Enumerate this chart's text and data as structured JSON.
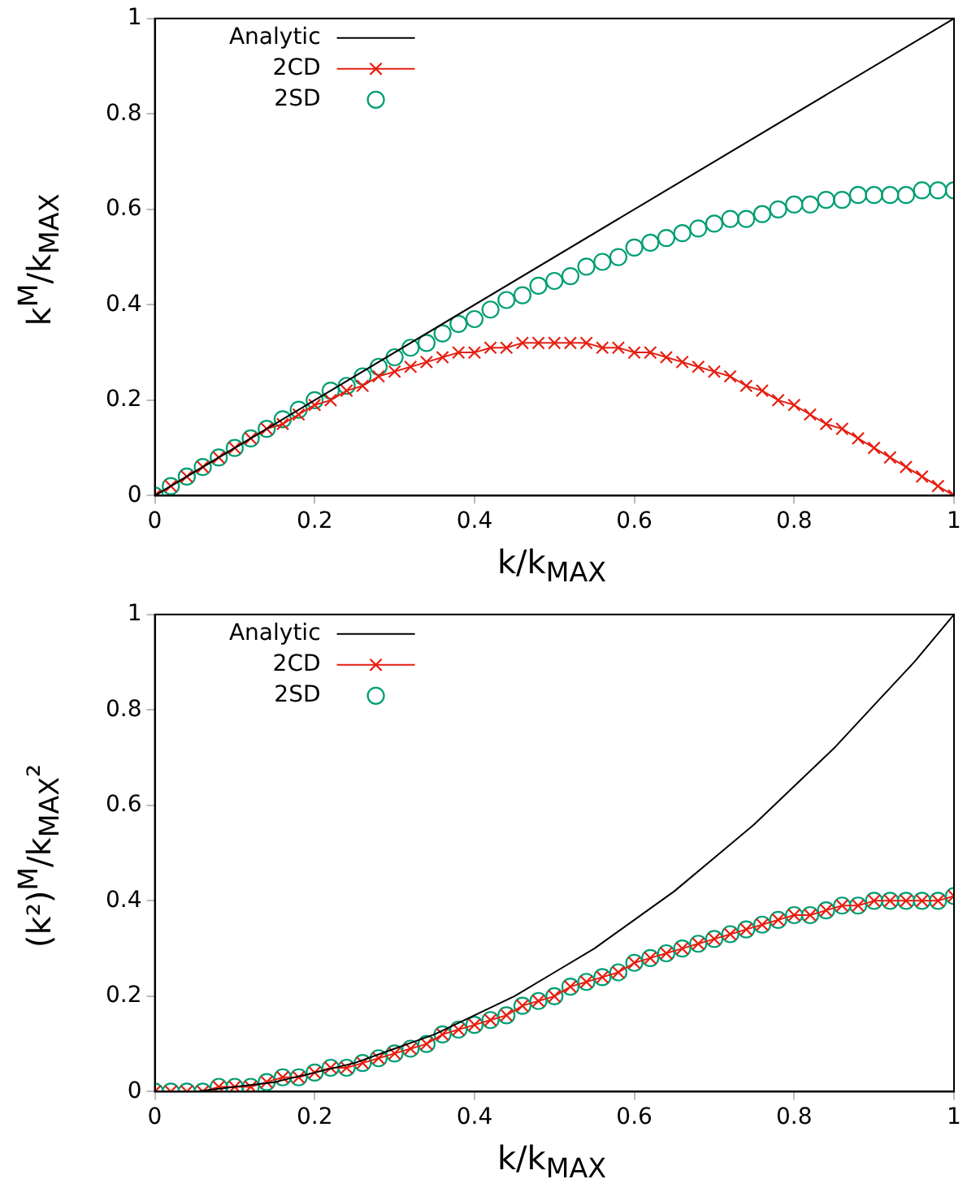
{
  "chart_data": [
    {
      "type": "line",
      "xlabel": "k/k$_{MAX}$",
      "ylabel": "k$^{M}$/k$_{MAX}$",
      "xlim": [
        0,
        1
      ],
      "ylim": [
        0,
        1
      ],
      "xticks": [
        0,
        0.2,
        0.4,
        0.6,
        0.8,
        1
      ],
      "yticks": [
        0,
        0.2,
        0.4,
        0.6,
        0.8,
        1
      ],
      "legend": "top left",
      "x": [
        0,
        0.02,
        0.04,
        0.06,
        0.08,
        0.1,
        0.12,
        0.14,
        0.16,
        0.18,
        0.2,
        0.22,
        0.24,
        0.26,
        0.28,
        0.3,
        0.32,
        0.34,
        0.36,
        0.38,
        0.4,
        0.42,
        0.44,
        0.46,
        0.48,
        0.5,
        0.52,
        0.54,
        0.56,
        0.58,
        0.6,
        0.62,
        0.64,
        0.66,
        0.68,
        0.7,
        0.72,
        0.74,
        0.76,
        0.78,
        0.8,
        0.82,
        0.84,
        0.86,
        0.88,
        0.9,
        0.92,
        0.94,
        0.96,
        0.98,
        1
      ],
      "series": [
        {
          "name": "Analytic",
          "marker": "none",
          "color": "#000000",
          "x": [
            0,
            1
          ],
          "values": [
            0,
            1
          ]
        },
        {
          "name": "2CD",
          "marker": "cross",
          "color": "#e51e10",
          "values": [
            0,
            0.02,
            0.04,
            0.06,
            0.08,
            0.1,
            0.12,
            0.14,
            0.15,
            0.17,
            0.19,
            0.2,
            0.22,
            0.23,
            0.25,
            0.26,
            0.27,
            0.28,
            0.29,
            0.3,
            0.3,
            0.31,
            0.31,
            0.32,
            0.32,
            0.32,
            0.32,
            0.32,
            0.31,
            0.31,
            0.3,
            0.3,
            0.29,
            0.28,
            0.27,
            0.26,
            0.25,
            0.23,
            0.22,
            0.2,
            0.19,
            0.17,
            0.15,
            0.14,
            0.12,
            0.1,
            0.08,
            0.06,
            0.04,
            0.02,
            0
          ]
        },
        {
          "name": "2SD",
          "type": "scatter",
          "marker": "circle",
          "color": "#009e73",
          "values": [
            0,
            0.02,
            0.04,
            0.06,
            0.08,
            0.1,
            0.12,
            0.14,
            0.16,
            0.18,
            0.2,
            0.22,
            0.23,
            0.25,
            0.27,
            0.29,
            0.31,
            0.32,
            0.34,
            0.36,
            0.37,
            0.39,
            0.41,
            0.42,
            0.44,
            0.45,
            0.46,
            0.48,
            0.49,
            0.5,
            0.52,
            0.53,
            0.54,
            0.55,
            0.56,
            0.57,
            0.58,
            0.58,
            0.59,
            0.6,
            0.61,
            0.61,
            0.62,
            0.62,
            0.63,
            0.63,
            0.63,
            0.63,
            0.64,
            0.64,
            0.64
          ]
        }
      ]
    },
    {
      "type": "line",
      "xlabel": "k/k$_{MAX}$",
      "ylabel": "(k²)$^{M}$/k$_{MAX}$²",
      "xlim": [
        0,
        1
      ],
      "ylim": [
        0,
        1
      ],
      "xticks": [
        0,
        0.2,
        0.4,
        0.6,
        0.8,
        1
      ],
      "yticks": [
        0,
        0.2,
        0.4,
        0.6,
        0.8,
        1
      ],
      "legend": "top left",
      "x": [
        0,
        0.02,
        0.04,
        0.06,
        0.08,
        0.1,
        0.12,
        0.14,
        0.16,
        0.18,
        0.2,
        0.22,
        0.24,
        0.26,
        0.28,
        0.3,
        0.32,
        0.34,
        0.36,
        0.38,
        0.4,
        0.42,
        0.44,
        0.46,
        0.48,
        0.5,
        0.52,
        0.54,
        0.56,
        0.58,
        0.6,
        0.62,
        0.64,
        0.66,
        0.68,
        0.7,
        0.72,
        0.74,
        0.76,
        0.78,
        0.8,
        0.82,
        0.84,
        0.86,
        0.88,
        0.9,
        0.92,
        0.94,
        0.96,
        0.98,
        1
      ],
      "series": [
        {
          "name": "Analytic",
          "marker": "none",
          "color": "#000000",
          "x": [
            0,
            0.05,
            0.1,
            0.15,
            0.2,
            0.25,
            0.3,
            0.35,
            0.4,
            0.45,
            0.5,
            0.55,
            0.6,
            0.65,
            0.7,
            0.75,
            0.8,
            0.85,
            0.9,
            0.95,
            1
          ],
          "values": [
            0,
            0,
            0.01,
            0.02,
            0.04,
            0.06,
            0.09,
            0.12,
            0.16,
            0.2,
            0.25,
            0.3,
            0.36,
            0.42,
            0.49,
            0.56,
            0.64,
            0.72,
            0.81,
            0.9,
            1
          ]
        },
        {
          "name": "2CD",
          "marker": "cross",
          "color": "#e51e10",
          "values": [
            0,
            0,
            0,
            0,
            0.01,
            0.01,
            0.01,
            0.02,
            0.03,
            0.03,
            0.04,
            0.05,
            0.05,
            0.06,
            0.07,
            0.08,
            0.09,
            0.1,
            0.12,
            0.13,
            0.14,
            0.15,
            0.16,
            0.18,
            0.19,
            0.2,
            0.22,
            0.23,
            0.24,
            0.25,
            0.27,
            0.28,
            0.29,
            0.3,
            0.31,
            0.32,
            0.33,
            0.34,
            0.35,
            0.36,
            0.37,
            0.37,
            0.38,
            0.39,
            0.39,
            0.4,
            0.4,
            0.4,
            0.4,
            0.4,
            0.41
          ]
        },
        {
          "name": "2SD",
          "type": "scatter",
          "marker": "circle",
          "color": "#009e73",
          "values": [
            0,
            0,
            0,
            0,
            0.01,
            0.01,
            0.01,
            0.02,
            0.03,
            0.03,
            0.04,
            0.05,
            0.05,
            0.06,
            0.07,
            0.08,
            0.09,
            0.1,
            0.12,
            0.13,
            0.14,
            0.15,
            0.16,
            0.18,
            0.19,
            0.2,
            0.22,
            0.23,
            0.24,
            0.25,
            0.27,
            0.28,
            0.29,
            0.3,
            0.31,
            0.32,
            0.33,
            0.34,
            0.35,
            0.36,
            0.37,
            0.37,
            0.38,
            0.39,
            0.39,
            0.4,
            0.4,
            0.4,
            0.4,
            0.4,
            0.41
          ]
        }
      ]
    }
  ]
}
